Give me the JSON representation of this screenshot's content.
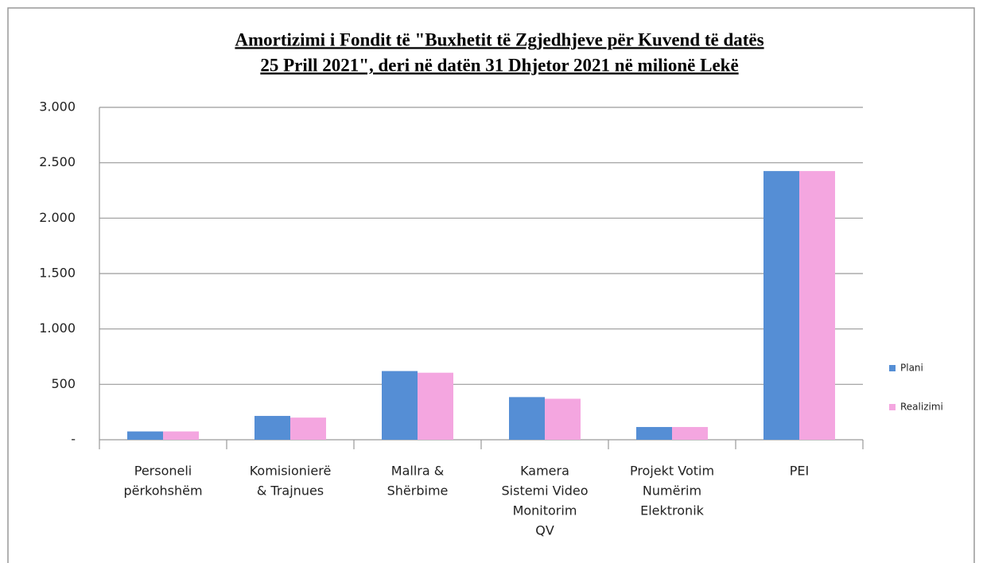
{
  "chart_data": {
    "type": "bar",
    "title": [
      "Amortizimi  i Fondit  të \"Buxhetit  të Zgjedhjeve  për Kuvend  të datës",
      "25 Prill  2021\", deri në datën 31 Dhjetor 2021 në milionë  Lekë"
    ],
    "categories": [
      [
        "Personeli",
        "përkohshëm"
      ],
      [
        "Komisionierë",
        "& Trajnues"
      ],
      [
        "Mallra &",
        "Shërbime"
      ],
      [
        "Kamera",
        "Sistemi Video",
        "Monitorim",
        "QV"
      ],
      [
        "Projekt Votim",
        "Numërim",
        "Elektronik"
      ],
      [
        "PEI"
      ]
    ],
    "series": [
      {
        "name": "Plani",
        "color": "#558ed5",
        "values": [
          75,
          215,
          620,
          385,
          115,
          2425
        ]
      },
      {
        "name": "Realizimi",
        "color": "#f4a6e0",
        "values": [
          75,
          200,
          605,
          370,
          115,
          2425
        ]
      }
    ],
    "ylim": [
      0,
      3000
    ],
    "yticks": [
      {
        "value": 0,
        "label": "-"
      },
      500,
      {
        "value": 1000,
        "label": "1.000"
      },
      {
        "value": 1500,
        "label": "1.500"
      },
      {
        "value": 2000,
        "label": "2.000"
      },
      {
        "value": 2500,
        "label": "2.500"
      },
      {
        "value": 3000,
        "label": "3.000"
      }
    ],
    "grid": true,
    "legend": "right"
  }
}
